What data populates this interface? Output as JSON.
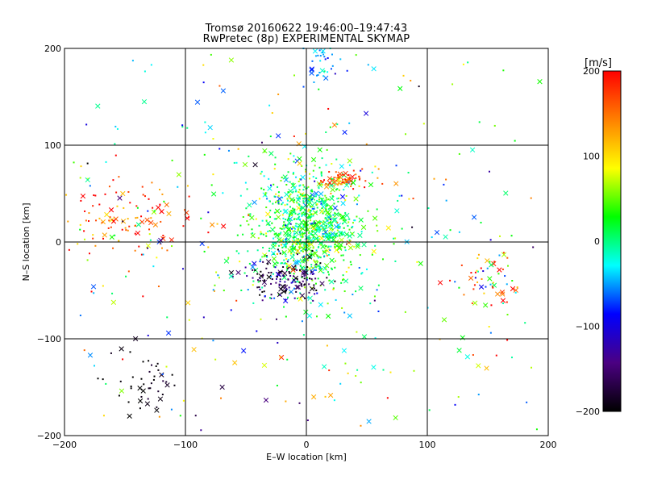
{
  "chart_data": {
    "type": "scatter",
    "title": "Tromsø 20160622 19:46:00–19:47:43",
    "subtitle": "RwPretec (8p) EXPERIMENTAL SKYMAP",
    "xlabel": "E–W location [km]",
    "ylabel": "N–S location [km]",
    "xlim": [
      -200,
      200
    ],
    "ylim": [
      -200,
      200
    ],
    "xticks": [
      -200,
      -100,
      0,
      100,
      200
    ],
    "yticks": [
      -200,
      -100,
      0,
      100,
      200
    ],
    "grid": true,
    "colorbar": {
      "label": "[m/s]",
      "range": [
        -200,
        200
      ],
      "ticks": [
        200,
        100,
        0,
        -100,
        -200
      ],
      "colors": [
        "#000000",
        "#4b0082",
        "#0000ff",
        "#00ffff",
        "#00ff00",
        "#ffff00",
        "#ff8000",
        "#ff0000"
      ]
    },
    "marker_types": [
      "dot",
      "x"
    ],
    "clusters": [
      {
        "x": 0,
        "y": 15,
        "spread_x": 22,
        "spread_y": 30,
        "velocity": 15,
        "velocity_spread": 40
      },
      {
        "x": -15,
        "y": -38,
        "spread_x": 18,
        "spread_y": 12,
        "velocity": -170,
        "velocity_spread": 40
      },
      {
        "x": 30,
        "y": 65,
        "spread_x": 12,
        "spread_y": 6,
        "velocity": 175,
        "velocity_spread": 25
      },
      {
        "x": -150,
        "y": 20,
        "spread_x": 28,
        "spread_y": 18,
        "velocity": 160,
        "velocity_spread": 45
      },
      {
        "x": -130,
        "y": -150,
        "spread_x": 15,
        "spread_y": 20,
        "velocity": -195,
        "velocity_spread": 10
      },
      {
        "x": 150,
        "y": -35,
        "spread_x": 18,
        "spread_y": 14,
        "velocity": 120,
        "velocity_spread": 100
      },
      {
        "x": 10,
        "y": 185,
        "spread_x": 10,
        "spread_y": 10,
        "velocity": -45,
        "velocity_spread": 20
      },
      {
        "x": 0,
        "y": 0,
        "spread_x": 120,
        "spread_y": 110,
        "velocity": 20,
        "velocity_spread": 90
      }
    ]
  }
}
